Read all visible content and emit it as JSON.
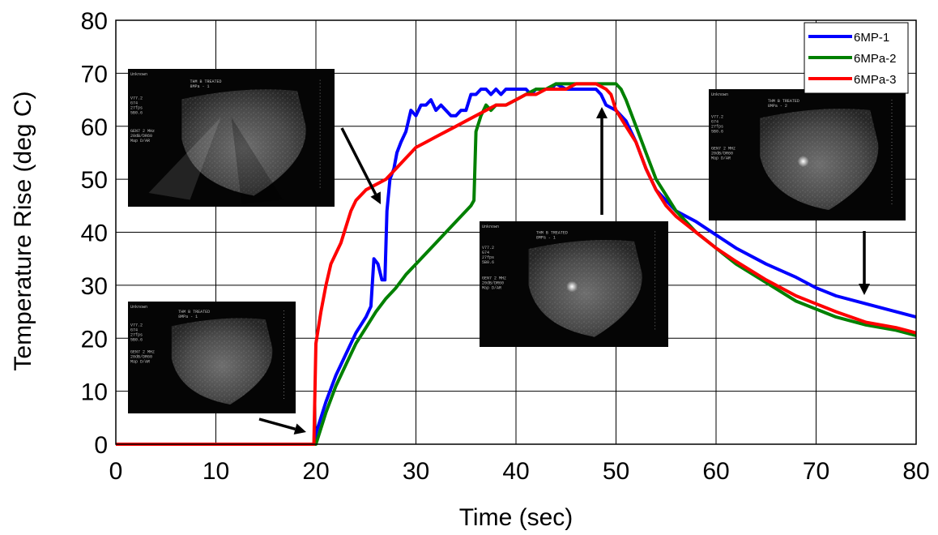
{
  "chart_data": {
    "type": "line",
    "xlabel": "Time (sec)",
    "ylabel": "Temperature Rise (deg C)",
    "xlim": [
      0,
      80
    ],
    "ylim": [
      0,
      80
    ],
    "xticks": [
      0,
      10,
      20,
      30,
      40,
      50,
      60,
      70,
      80
    ],
    "yticks": [
      0,
      10,
      20,
      30,
      40,
      50,
      60,
      70,
      80
    ],
    "grid": true,
    "legend_position": "top-right",
    "series": [
      {
        "name": "6MP-1",
        "color": "#0000ff",
        "points": [
          [
            0,
            0
          ],
          [
            19.8,
            0
          ],
          [
            20,
            2
          ],
          [
            21,
            8
          ],
          [
            22,
            13
          ],
          [
            23,
            17
          ],
          [
            24,
            21
          ],
          [
            25,
            24
          ],
          [
            25.5,
            26
          ],
          [
            25.8,
            35
          ],
          [
            26.2,
            34
          ],
          [
            26.6,
            31
          ],
          [
            26.9,
            31
          ],
          [
            27.1,
            44
          ],
          [
            27.4,
            50
          ],
          [
            27.8,
            52
          ],
          [
            28.1,
            55
          ],
          [
            28.5,
            57
          ],
          [
            29,
            59
          ],
          [
            29.5,
            63
          ],
          [
            30,
            62
          ],
          [
            30.5,
            64
          ],
          [
            31,
            64
          ],
          [
            31.5,
            65
          ],
          [
            32,
            63
          ],
          [
            32.5,
            64
          ],
          [
            33,
            63
          ],
          [
            33.5,
            62
          ],
          [
            34,
            62
          ],
          [
            34.5,
            63
          ],
          [
            35,
            63
          ],
          [
            35.5,
            66
          ],
          [
            36,
            66
          ],
          [
            36.5,
            67
          ],
          [
            37,
            67
          ],
          [
            37.5,
            66
          ],
          [
            38,
            67
          ],
          [
            38.5,
            66
          ],
          [
            39,
            67
          ],
          [
            39.5,
            67
          ],
          [
            40,
            67
          ],
          [
            40.5,
            67
          ],
          [
            41,
            67
          ],
          [
            41.5,
            66
          ],
          [
            42,
            67
          ],
          [
            42.5,
            67
          ],
          [
            43,
            67
          ],
          [
            43.5,
            67
          ],
          [
            44,
            68
          ],
          [
            45,
            67
          ],
          [
            46,
            67
          ],
          [
            47,
            67
          ],
          [
            48,
            67
          ],
          [
            48.5,
            66
          ],
          [
            49,
            64
          ],
          [
            50,
            63
          ],
          [
            51,
            61
          ],
          [
            52,
            57
          ],
          [
            53,
            52
          ],
          [
            54,
            48
          ],
          [
            55,
            46
          ],
          [
            56,
            44
          ],
          [
            58,
            42
          ],
          [
            60,
            39.5
          ],
          [
            62,
            37
          ],
          [
            65,
            34
          ],
          [
            68,
            31.5
          ],
          [
            70,
            29.5
          ],
          [
            72,
            28
          ],
          [
            75,
            26.5
          ],
          [
            78,
            25
          ],
          [
            80,
            24
          ]
        ]
      },
      {
        "name": "6MPa-2",
        "color": "#008000",
        "points": [
          [
            0,
            0
          ],
          [
            19.8,
            0
          ],
          [
            20,
            0
          ],
          [
            21,
            6
          ],
          [
            22,
            11
          ],
          [
            23,
            15
          ],
          [
            24,
            19
          ],
          [
            25,
            22
          ],
          [
            26,
            25
          ],
          [
            27,
            27.5
          ],
          [
            28,
            29.5
          ],
          [
            29,
            32
          ],
          [
            30,
            34
          ],
          [
            31,
            36
          ],
          [
            32,
            38
          ],
          [
            33,
            40
          ],
          [
            34,
            42
          ],
          [
            35,
            44
          ],
          [
            35.5,
            45
          ],
          [
            35.8,
            46
          ],
          [
            36,
            59
          ],
          [
            36.5,
            62
          ],
          [
            37,
            64
          ],
          [
            37.5,
            63
          ],
          [
            38,
            64
          ],
          [
            38.5,
            64
          ],
          [
            39,
            64
          ],
          [
            40,
            65
          ],
          [
            41,
            66
          ],
          [
            42,
            67
          ],
          [
            43,
            67
          ],
          [
            44,
            68
          ],
          [
            45,
            68
          ],
          [
            46,
            68
          ],
          [
            47,
            68
          ],
          [
            48,
            68
          ],
          [
            49,
            68
          ],
          [
            50,
            68
          ],
          [
            50.5,
            67
          ],
          [
            51,
            65
          ],
          [
            52,
            60
          ],
          [
            53,
            55
          ],
          [
            54,
            50
          ],
          [
            55,
            47
          ],
          [
            56,
            44
          ],
          [
            58,
            40
          ],
          [
            60,
            37
          ],
          [
            62,
            34
          ],
          [
            65,
            30.5
          ],
          [
            68,
            27
          ],
          [
            70,
            25.5
          ],
          [
            72,
            24
          ],
          [
            75,
            22.5
          ],
          [
            78,
            21.5
          ],
          [
            80,
            20.5
          ]
        ]
      },
      {
        "name": "6MPa-3",
        "color": "#ff0000",
        "points": [
          [
            0,
            0
          ],
          [
            19.5,
            0
          ],
          [
            19.8,
            0
          ],
          [
            20,
            19
          ],
          [
            20.5,
            25
          ],
          [
            21,
            30
          ],
          [
            21.5,
            34
          ],
          [
            22,
            36
          ],
          [
            22.5,
            38
          ],
          [
            23,
            41
          ],
          [
            23.5,
            44
          ],
          [
            24,
            46
          ],
          [
            25,
            48
          ],
          [
            26,
            49
          ],
          [
            27,
            50
          ],
          [
            28,
            52
          ],
          [
            29,
            54
          ],
          [
            30,
            56
          ],
          [
            31,
            57
          ],
          [
            32,
            58
          ],
          [
            33,
            59
          ],
          [
            34,
            60
          ],
          [
            35,
            61
          ],
          [
            36,
            62
          ],
          [
            37,
            63
          ],
          [
            38,
            64
          ],
          [
            39,
            64
          ],
          [
            40,
            65
          ],
          [
            41,
            66
          ],
          [
            42,
            66
          ],
          [
            43,
            67
          ],
          [
            44,
            67
          ],
          [
            45,
            67
          ],
          [
            46,
            68
          ],
          [
            47,
            68
          ],
          [
            48,
            68
          ],
          [
            49,
            67
          ],
          [
            49.5,
            66
          ],
          [
            50,
            63
          ],
          [
            51,
            60
          ],
          [
            52,
            57
          ],
          [
            53,
            52
          ],
          [
            54,
            48
          ],
          [
            55,
            45
          ],
          [
            56,
            43
          ],
          [
            58,
            40
          ],
          [
            60,
            37
          ],
          [
            62,
            34.5
          ],
          [
            65,
            31
          ],
          [
            68,
            28
          ],
          [
            70,
            26.5
          ],
          [
            72,
            25
          ],
          [
            75,
            23
          ],
          [
            78,
            22
          ],
          [
            80,
            21
          ]
        ]
      }
    ]
  },
  "ultrasound_insets": [
    {
      "id": "inset-upper-left",
      "top_text": "Unknown",
      "side_text": [
        "V77.2",
        "G74",
        "27fps",
        "5B0.6"
      ],
      "treat_text": [
        "THM B TREATED",
        "8MPa - 1"
      ],
      "freq_text": [
        "GEN7 2 MHz",
        "20dB/DR60",
        "Map D/AR"
      ]
    },
    {
      "id": "inset-lower-left",
      "top_text": "Unknown",
      "side_text": [
        "V77.2",
        "G74",
        "27fps",
        "5B0.6"
      ],
      "treat_text": [
        "THM B TREATED",
        "8MPa - 1"
      ],
      "freq_text": [
        "GEN7 2 MHz",
        "20dB/DR60",
        "Map D/AR"
      ]
    },
    {
      "id": "inset-center",
      "top_text": "Unknown",
      "side_text": [
        "V77.2",
        "G74",
        "27fps",
        "5B0.6"
      ],
      "treat_text": [
        "THM B TREATED",
        "8MPa - 1"
      ],
      "freq_text": [
        "GEN7 2 MHz",
        "20dB/DR60",
        "Map D/AR"
      ]
    },
    {
      "id": "inset-right",
      "top_text": "Unknown",
      "side_text": [
        "V77.2",
        "G74",
        "27fps",
        "5B0.6"
      ],
      "treat_text": [
        "THM B TREATED",
        "8MPa - 2"
      ],
      "freq_text": [
        "GEN7 2 MHz",
        "20dB/DR60",
        "Map D/AR"
      ]
    }
  ]
}
